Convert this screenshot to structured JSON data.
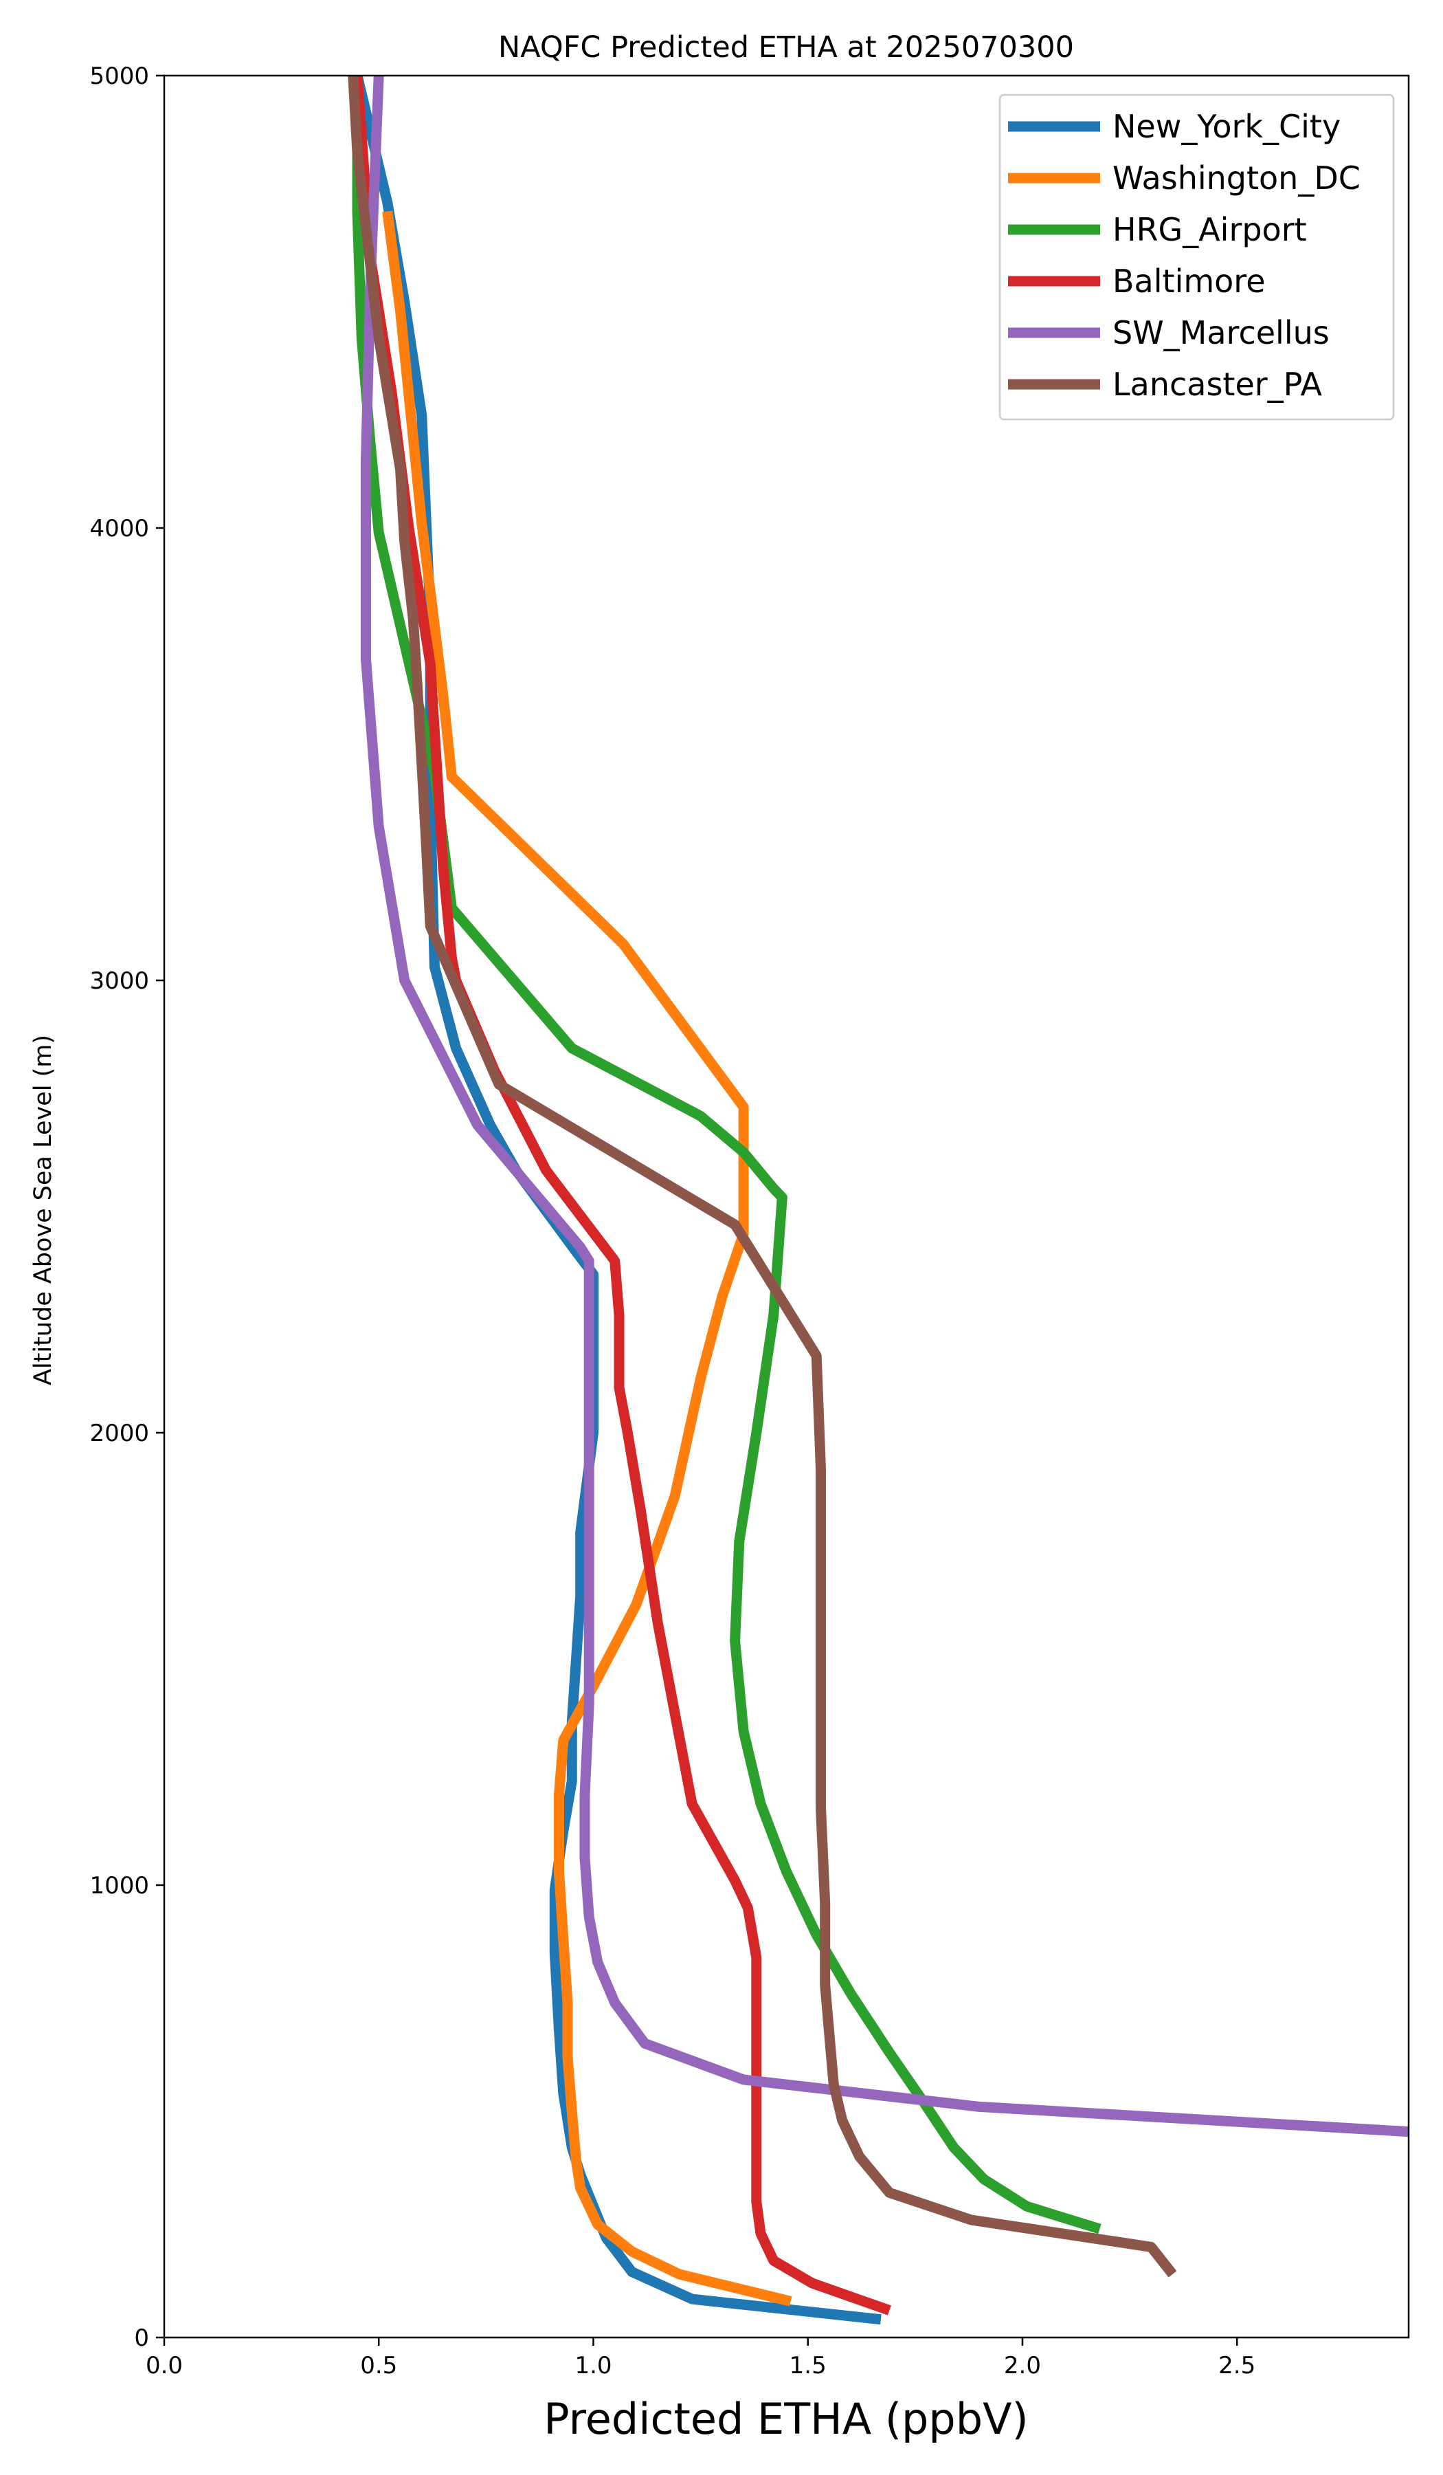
{
  "chart_data": {
    "type": "line",
    "title": "NAQFC Predicted ETHA at 2025070300",
    "xlabel": "Predicted ETHA (ppbV)",
    "ylabel": "Altitude Above Sea Level (m)",
    "xlim": [
      0.0,
      2.9
    ],
    "ylim": [
      0,
      5000
    ],
    "xticks": [
      0.0,
      0.5,
      1.0,
      1.5,
      2.0,
      2.5
    ],
    "xtick_labels": [
      "0.0",
      "0.5",
      "1.0",
      "1.5",
      "2.0",
      "2.5"
    ],
    "yticks": [
      0,
      1000,
      2000,
      3000,
      4000,
      5000
    ],
    "ytick_labels": [
      "0",
      "1000",
      "2000",
      "3000",
      "4000",
      "5000"
    ],
    "grid": false,
    "legend_position": "top-right",
    "series": [
      {
        "name": "New_York_City",
        "color": "#1f77b4",
        "x": [
          1.67,
          1.23,
          1.09,
          1.03,
          1.0,
          0.97,
          0.95,
          0.93,
          0.92,
          0.91,
          0.91,
          0.93,
          0.95,
          0.95,
          0.96,
          0.97,
          0.97,
          1.0,
          1.0,
          1.0,
          0.96,
          0.82,
          0.76,
          0.68,
          0.63,
          0.62,
          0.62,
          0.6,
          0.56,
          0.52,
          0.45
        ],
        "y": [
          40,
          85,
          145,
          220,
          290,
          360,
          420,
          540,
          680,
          850,
          990,
          1120,
          1230,
          1360,
          1500,
          1640,
          1780,
          2000,
          2200,
          2350,
          2400,
          2580,
          2680,
          2850,
          3030,
          3400,
          3800,
          4250,
          4500,
          4720,
          5000
        ]
      },
      {
        "name": "Washington_DC",
        "color": "#ff7f0e",
        "x": [
          1.46,
          1.2,
          1.09,
          1.01,
          0.97,
          0.96,
          0.95,
          0.94,
          0.94,
          0.93,
          0.92,
          0.92,
          0.93,
          1.0,
          1.1,
          1.19,
          1.25,
          1.3,
          1.35,
          1.35,
          1.07,
          0.67,
          0.65,
          0.62,
          0.6,
          0.58,
          0.55,
          0.52
        ],
        "y": [
          80,
          140,
          190,
          250,
          330,
          390,
          500,
          620,
          740,
          880,
          1030,
          1200,
          1320,
          1440,
          1620,
          1860,
          2120,
          2300,
          2440,
          2720,
          3080,
          3450,
          3630,
          3860,
          4010,
          4200,
          4480,
          4700
        ]
      },
      {
        "name": "HRG_Airport",
        "color": "#2ca02c",
        "x": [
          2.18,
          2.01,
          1.91,
          1.84,
          1.77,
          1.69,
          1.6,
          1.52,
          1.45,
          1.39,
          1.35,
          1.33,
          1.34,
          1.38,
          1.42,
          1.44,
          1.42,
          1.35,
          1.25,
          0.95,
          0.67,
          0.63,
          0.6,
          0.5,
          0.48,
          0.46,
          0.45,
          0.45
        ],
        "y": [
          240,
          290,
          350,
          420,
          520,
          630,
          760,
          890,
          1030,
          1180,
          1340,
          1540,
          1760,
          2000,
          2260,
          2520,
          2540,
          2620,
          2700,
          2850,
          3160,
          3460,
          3580,
          3990,
          4190,
          4420,
          4700,
          5000
        ]
      },
      {
        "name": "Baltimore",
        "color": "#d62728",
        "x": [
          1.69,
          1.51,
          1.42,
          1.39,
          1.38,
          1.38,
          1.38,
          1.38,
          1.38,
          1.38,
          1.36,
          1.33,
          1.23,
          1.19,
          1.15,
          1.11,
          1.08,
          1.06,
          1.06,
          1.05,
          0.89,
          0.77,
          0.68,
          0.67,
          0.65,
          0.64,
          0.62,
          0.57,
          0.53,
          0.48,
          0.45
        ],
        "y": [
          60,
          120,
          170,
          230,
          300,
          400,
          530,
          610,
          710,
          840,
          950,
          1010,
          1180,
          1380,
          1580,
          1830,
          2000,
          2100,
          2260,
          2380,
          2580,
          2800,
          3000,
          3050,
          3250,
          3400,
          3700,
          4000,
          4300,
          4600,
          5000
        ]
      },
      {
        "name": "SW_Marcellus",
        "color": "#9467bd",
        "x": [
          2.9,
          1.9,
          1.35,
          1.12,
          1.05,
          1.01,
          0.99,
          0.98,
          0.98,
          0.99,
          0.99,
          0.99,
          0.99,
          0.99,
          0.99,
          0.99,
          0.97,
          0.89,
          0.73,
          0.56,
          0.5,
          0.47,
          0.47,
          0.48,
          0.5
        ],
        "y": [
          455,
          510,
          570,
          650,
          740,
          830,
          930,
          1060,
          1200,
          1400,
          1550,
          1700,
          1800,
          2000,
          2200,
          2380,
          2410,
          2500,
          2680,
          3000,
          3340,
          3710,
          4150,
          4530,
          5000
        ]
      },
      {
        "name": "Lancaster_PA",
        "color": "#8c564b",
        "x": [
          2.35,
          2.3,
          1.88,
          1.69,
          1.62,
          1.58,
          1.56,
          1.55,
          1.54,
          1.54,
          1.53,
          1.53,
          1.53,
          1.53,
          1.53,
          1.52,
          1.33,
          0.78,
          0.62,
          0.61,
          0.6,
          0.59,
          0.58,
          0.56,
          0.55,
          0.5,
          0.45,
          0.44
        ],
        "y": [
          140,
          200,
          260,
          320,
          400,
          480,
          560,
          670,
          780,
          960,
          1170,
          1380,
          1600,
          1800,
          1920,
          2170,
          2460,
          2770,
          3120,
          3310,
          3480,
          3650,
          3800,
          3970,
          4130,
          4420,
          4830,
          5000
        ]
      }
    ]
  }
}
